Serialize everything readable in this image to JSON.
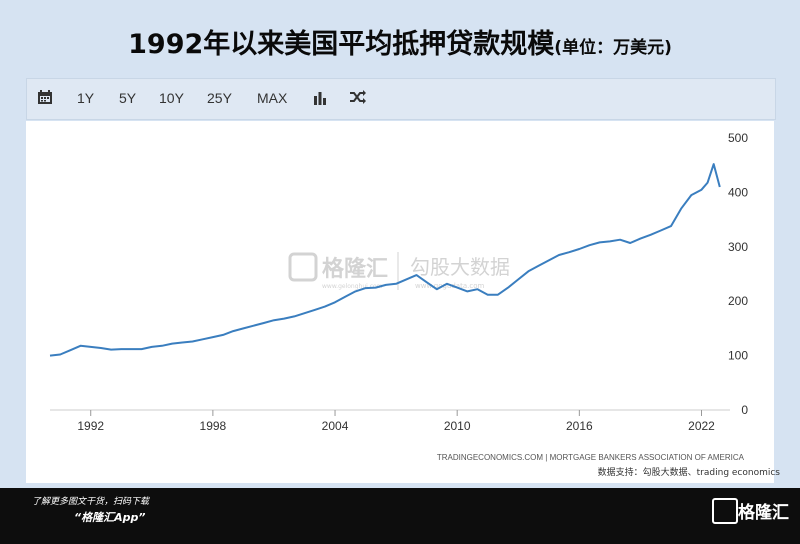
{
  "title": {
    "main": "1992年以来美国平均抵押贷款规模",
    "unit": "(单位：万美元)"
  },
  "toolbar": {
    "calendar_icon": "calendar-icon",
    "buttons": [
      "1Y",
      "5Y",
      "10Y",
      "25Y",
      "MAX"
    ],
    "bar_chart_icon": "bar-chart-icon",
    "shuffle_icon": "shuffle-icon"
  },
  "watermark": {
    "brand1": "格隆汇",
    "brand1_url": "www.gelonghui.com",
    "brand2": "勾股大数据",
    "brand2_url": "www.gogudata.com"
  },
  "source": {
    "line1": "TRADINGECONOMICS.COM | MORTGAGE BANKERS ASSOCIATION OF AMERICA",
    "line2": "数据支持：勾股大数据、trading economics"
  },
  "footer": {
    "line1": "了解更多图文干货，扫码下载",
    "line2": "“格隆汇App”",
    "logo_text": "格隆汇"
  },
  "colors": {
    "line": "#3a7ebf",
    "background": "#d6e3f2",
    "axis_text": "#333333",
    "gridline": "#eeeeee"
  },
  "chart_data": {
    "type": "line",
    "title": "1992年以来美国平均抵押贷款规模",
    "xlabel": "",
    "ylabel": "",
    "ylim": [
      0,
      500
    ],
    "yticks": [
      "0",
      "100",
      "200",
      "300",
      "400",
      "500"
    ],
    "xticks": [
      "1992",
      "1998",
      "2004",
      "2010",
      "2016",
      "2022"
    ],
    "xlim": [
      1990.0,
      2023.4
    ],
    "grid": "off",
    "series": [
      {
        "name": "",
        "x": [
          1990.0,
          1990.5,
          1991.0,
          1991.5,
          1992.0,
          1992.5,
          1993.0,
          1993.5,
          1994.0,
          1994.5,
          1995.0,
          1995.5,
          1996.0,
          1996.5,
          1997.0,
          1997.5,
          1998.0,
          1998.5,
          1999.0,
          1999.5,
          2000.0,
          2000.5,
          2001.0,
          2001.5,
          2002.0,
          2002.5,
          2003.0,
          2003.5,
          2004.0,
          2004.5,
          2005.0,
          2005.5,
          2006.0,
          2006.5,
          2007.0,
          2007.5,
          2008.0,
          2008.5,
          2009.0,
          2009.5,
          2010.0,
          2010.5,
          2011.0,
          2011.5,
          2012.0,
          2012.5,
          2013.0,
          2013.5,
          2014.0,
          2014.5,
          2015.0,
          2015.5,
          2016.0,
          2016.5,
          2017.0,
          2017.5,
          2018.0,
          2018.5,
          2019.0,
          2019.5,
          2020.0,
          2020.5,
          2021.0,
          2021.5,
          2022.0,
          2022.3,
          2022.6,
          2022.9
        ],
        "values": [
          100,
          102,
          110,
          118,
          116,
          114,
          111,
          112,
          112,
          112,
          116,
          118,
          122,
          124,
          126,
          130,
          134,
          138,
          145,
          150,
          155,
          160,
          165,
          168,
          172,
          178,
          184,
          190,
          198,
          208,
          218,
          224,
          225,
          230,
          232,
          240,
          248,
          235,
          222,
          232,
          225,
          218,
          222,
          212,
          212,
          225,
          240,
          255,
          265,
          275,
          285,
          290,
          296,
          303,
          308,
          310,
          313,
          307,
          315,
          322,
          330,
          338,
          370,
          395,
          405,
          418,
          452,
          410
        ]
      }
    ]
  }
}
